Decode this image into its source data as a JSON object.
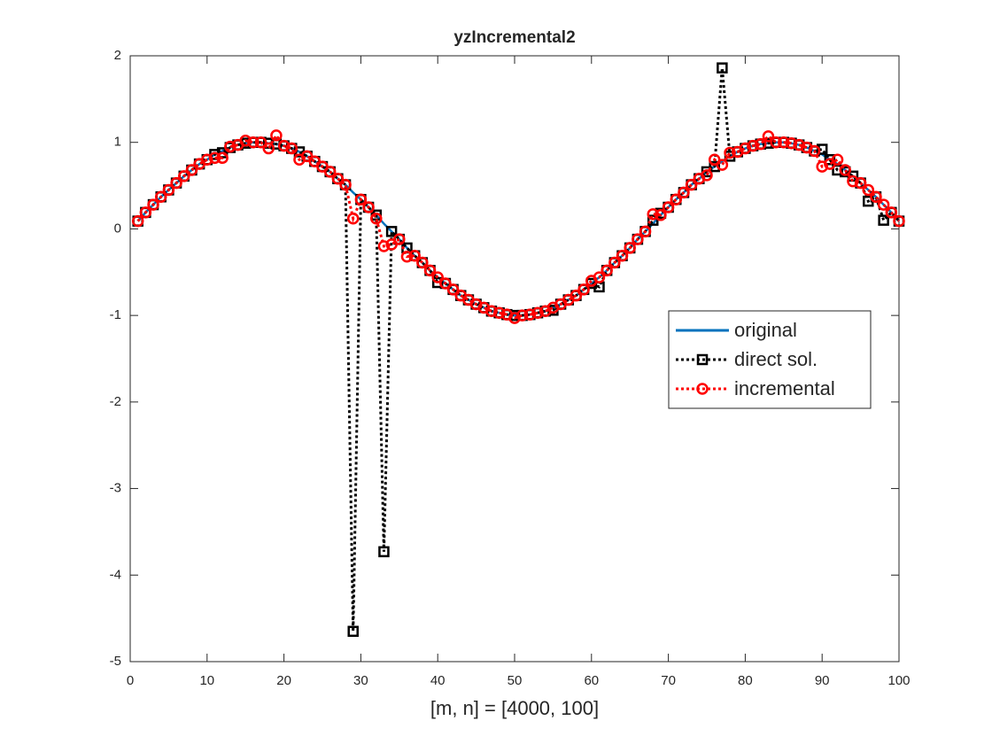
{
  "chart_data": {
    "type": "line",
    "title": "yzIncremental2",
    "x_label": "[m, n] = [4000, 100]",
    "x": [
      1,
      2,
      3,
      4,
      5,
      6,
      7,
      8,
      9,
      10,
      11,
      12,
      13,
      14,
      15,
      16,
      17,
      18,
      19,
      20,
      21,
      22,
      23,
      24,
      25,
      26,
      27,
      28,
      29,
      30,
      31,
      32,
      33,
      34,
      35,
      36,
      37,
      38,
      39,
      40,
      41,
      42,
      43,
      44,
      45,
      46,
      47,
      48,
      49,
      50,
      51,
      52,
      53,
      54,
      55,
      56,
      57,
      58,
      59,
      60,
      61,
      62,
      63,
      64,
      65,
      66,
      67,
      68,
      69,
      70,
      71,
      72,
      73,
      74,
      75,
      76,
      77,
      78,
      79,
      80,
      81,
      82,
      83,
      84,
      85,
      86,
      87,
      88,
      89,
      90,
      91,
      92,
      93,
      94,
      95,
      96,
      97,
      98,
      99,
      100
    ],
    "xlim": [
      0,
      100
    ],
    "xticks": [
      0,
      10,
      20,
      30,
      40,
      50,
      60,
      70,
      80,
      90,
      100
    ],
    "ylim": [
      -5,
      2
    ],
    "yticks": [
      -5,
      -4,
      -3,
      -2,
      -1,
      0,
      1,
      2
    ],
    "legend": "east",
    "series": [
      {
        "name": "original",
        "color": "#0072bd",
        "line_style": "solid",
        "marker": "none",
        "values": [
          0.09,
          0.19,
          0.28,
          0.37,
          0.45,
          0.53,
          0.61,
          0.68,
          0.75,
          0.8,
          0.86,
          0.9,
          0.94,
          0.97,
          0.99,
          1.0,
          1.0,
          0.99,
          0.98,
          0.96,
          0.93,
          0.89,
          0.84,
          0.78,
          0.72,
          0.66,
          0.58,
          0.51,
          0.42,
          0.34,
          0.25,
          0.16,
          0.06,
          -0.03,
          -0.12,
          -0.22,
          -0.31,
          -0.39,
          -0.48,
          -0.56,
          -0.63,
          -0.7,
          -0.77,
          -0.82,
          -0.87,
          -0.91,
          -0.95,
          -0.97,
          -0.99,
          -1.0,
          -1.0,
          -0.99,
          -0.97,
          -0.95,
          -0.91,
          -0.87,
          -0.82,
          -0.77,
          -0.7,
          -0.63,
          -0.56,
          -0.48,
          -0.39,
          -0.31,
          -0.22,
          -0.12,
          -0.03,
          0.06,
          0.16,
          0.25,
          0.34,
          0.42,
          0.51,
          0.58,
          0.66,
          0.72,
          0.78,
          0.84,
          0.89,
          0.93,
          0.96,
          0.98,
          0.99,
          1.0,
          1.0,
          0.99,
          0.97,
          0.94,
          0.9,
          0.86,
          0.8,
          0.75,
          0.68,
          0.61,
          0.53,
          0.45,
          0.37,
          0.28,
          0.19,
          0.09
        ]
      },
      {
        "name": "direct sol.",
        "color": "#000000",
        "line_style": "dotted",
        "marker": "square",
        "values": [
          0.09,
          0.19,
          0.28,
          0.37,
          0.45,
          0.53,
          0.61,
          0.68,
          0.75,
          0.8,
          0.86,
          0.88,
          0.94,
          0.97,
          0.99,
          1.0,
          1.0,
          0.99,
          0.98,
          0.96,
          0.93,
          0.89,
          0.84,
          0.78,
          0.72,
          0.66,
          0.58,
          0.51,
          -4.65,
          0.34,
          0.25,
          0.16,
          -3.73,
          -0.03,
          -0.12,
          -0.22,
          -0.31,
          -0.39,
          -0.48,
          -0.62,
          -0.63,
          -0.7,
          -0.77,
          -0.82,
          -0.87,
          -0.91,
          -0.95,
          -0.97,
          -0.99,
          -1.0,
          -1.0,
          -0.99,
          -0.97,
          -0.95,
          -0.94,
          -0.87,
          -0.82,
          -0.77,
          -0.7,
          -0.63,
          -0.67,
          -0.48,
          -0.39,
          -0.31,
          -0.22,
          -0.12,
          -0.03,
          0.1,
          0.18,
          0.25,
          0.34,
          0.42,
          0.51,
          0.58,
          0.66,
          0.72,
          1.86,
          0.84,
          0.89,
          0.93,
          0.96,
          0.98,
          0.99,
          1.0,
          1.0,
          0.99,
          0.97,
          0.94,
          0.9,
          0.92,
          0.8,
          0.68,
          0.66,
          0.61,
          0.53,
          0.32,
          0.37,
          0.1,
          0.19,
          0.09
        ]
      },
      {
        "name": "incremental",
        "color": "#ff0000",
        "line_style": "dotted",
        "marker": "circle",
        "values": [
          0.09,
          0.19,
          0.28,
          0.37,
          0.45,
          0.53,
          0.61,
          0.68,
          0.75,
          0.8,
          0.82,
          0.82,
          0.95,
          0.97,
          1.02,
          1.0,
          1.0,
          0.93,
          1.08,
          0.96,
          0.93,
          0.8,
          0.84,
          0.78,
          0.72,
          0.66,
          0.58,
          0.51,
          0.12,
          0.34,
          0.25,
          0.12,
          -0.2,
          -0.18,
          -0.12,
          -0.32,
          -0.31,
          -0.39,
          -0.48,
          -0.56,
          -0.63,
          -0.7,
          -0.77,
          -0.82,
          -0.87,
          -0.91,
          -0.95,
          -0.97,
          -0.99,
          -1.03,
          -1.0,
          -0.99,
          -0.97,
          -0.95,
          -0.91,
          -0.87,
          -0.82,
          -0.77,
          -0.7,
          -0.6,
          -0.56,
          -0.48,
          -0.39,
          -0.31,
          -0.22,
          -0.12,
          -0.03,
          0.17,
          0.16,
          0.25,
          0.34,
          0.42,
          0.51,
          0.58,
          0.62,
          0.8,
          0.74,
          0.88,
          0.89,
          0.93,
          0.96,
          0.98,
          1.07,
          1.0,
          1.0,
          0.99,
          0.97,
          0.94,
          0.9,
          0.72,
          0.75,
          0.8,
          0.68,
          0.55,
          0.53,
          0.45,
          0.37,
          0.28,
          0.19,
          0.09
        ]
      }
    ]
  }
}
